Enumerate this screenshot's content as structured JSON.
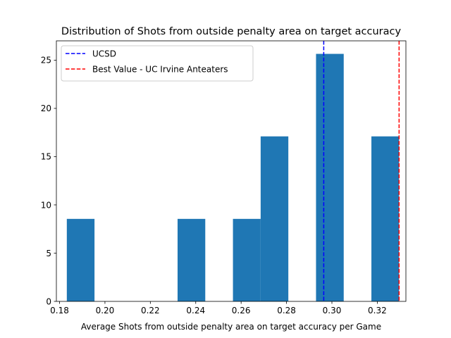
{
  "chart_data": {
    "type": "bar",
    "title": "Distribution of Shots from outside penalty area on target accuracy",
    "xlabel": "Average Shots from outside penalty area on target accuracy per Game",
    "ylabel": "",
    "xlim": [
      0.1786,
      0.3326
    ],
    "ylim": [
      0,
      27.0
    ],
    "bins": [
      {
        "x0": 0.1832,
        "x1": 0.1954,
        "value": 8.55
      },
      {
        "x0": 0.1954,
        "x1": 0.2076,
        "value": 0
      },
      {
        "x0": 0.2076,
        "x1": 0.2198,
        "value": 0
      },
      {
        "x0": 0.2198,
        "x1": 0.232,
        "value": 0
      },
      {
        "x0": 0.232,
        "x1": 0.2442,
        "value": 8.55
      },
      {
        "x0": 0.2442,
        "x1": 0.2564,
        "value": 0
      },
      {
        "x0": 0.2564,
        "x1": 0.2686,
        "value": 8.55
      },
      {
        "x0": 0.2686,
        "x1": 0.2808,
        "value": 17.1
      },
      {
        "x0": 0.2808,
        "x1": 0.293,
        "value": 0
      },
      {
        "x0": 0.293,
        "x1": 0.3052,
        "value": 25.65
      },
      {
        "x0": 0.3052,
        "x1": 0.3174,
        "value": 0
      },
      {
        "x0": 0.3174,
        "x1": 0.3296,
        "value": 17.1
      }
    ],
    "xticks": [
      "0.18",
      "0.20",
      "0.22",
      "0.24",
      "0.26",
      "0.28",
      "0.30",
      "0.32"
    ],
    "xtick_values": [
      0.18,
      0.2,
      0.22,
      0.24,
      0.26,
      0.28,
      0.3,
      0.32
    ],
    "yticks": [
      "0",
      "5",
      "10",
      "15",
      "20",
      "25"
    ],
    "ytick_values": [
      0,
      5,
      10,
      15,
      20,
      25
    ],
    "bar_color": "#1f77b4",
    "reference_lines": [
      {
        "label": "UCSD",
        "x": 0.2964,
        "color": "#0000ff"
      },
      {
        "label": "Best Value - UC Irvine Anteaters",
        "x": 0.3296,
        "color": "#ff0000"
      }
    ],
    "legend_position": "top-left",
    "grid": false
  }
}
